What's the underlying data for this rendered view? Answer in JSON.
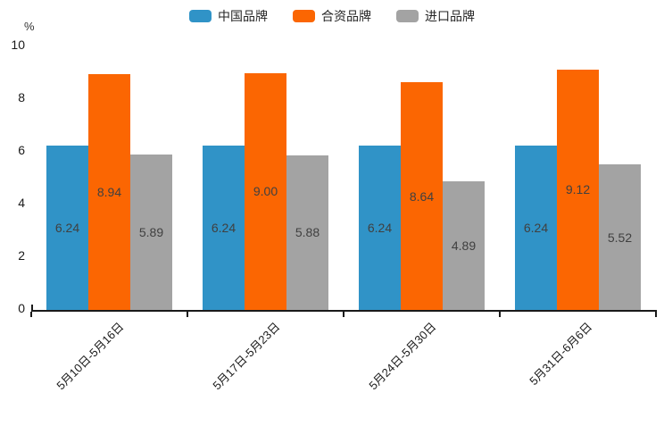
{
  "chart_data": {
    "type": "bar",
    "title": "",
    "ylabel": "%",
    "xlabel": "",
    "ylim": [
      0,
      10
    ],
    "yticks": [
      0,
      2,
      4,
      6,
      8,
      10
    ],
    "grid": false,
    "legend_position": "top",
    "value_labels": true,
    "categories": [
      "5月10日-5月16日",
      "5月17日-5月23日",
      "5月24日-5月30日",
      "5月31日-6月6日"
    ],
    "series": [
      {
        "key": "china-brand",
        "name": "中国品牌",
        "color": "#3093C7",
        "values": [
          6.24,
          6.24,
          6.24,
          6.24
        ],
        "labels": [
          "6.24",
          "6.24",
          "6.24",
          "6.24"
        ]
      },
      {
        "key": "joint-venture-brand",
        "name": "合资品牌",
        "color": "#FB6602",
        "values": [
          8.94,
          9.0,
          8.64,
          9.12
        ],
        "labels": [
          "8.94",
          "9.00",
          "8.64",
          "9.12"
        ]
      },
      {
        "key": "import-brand",
        "name": "进口品牌",
        "color": "#A3A3A3",
        "values": [
          5.89,
          5.88,
          4.89,
          5.52
        ],
        "labels": [
          "5.89",
          "5.88",
          "4.89",
          "5.52"
        ]
      }
    ]
  }
}
